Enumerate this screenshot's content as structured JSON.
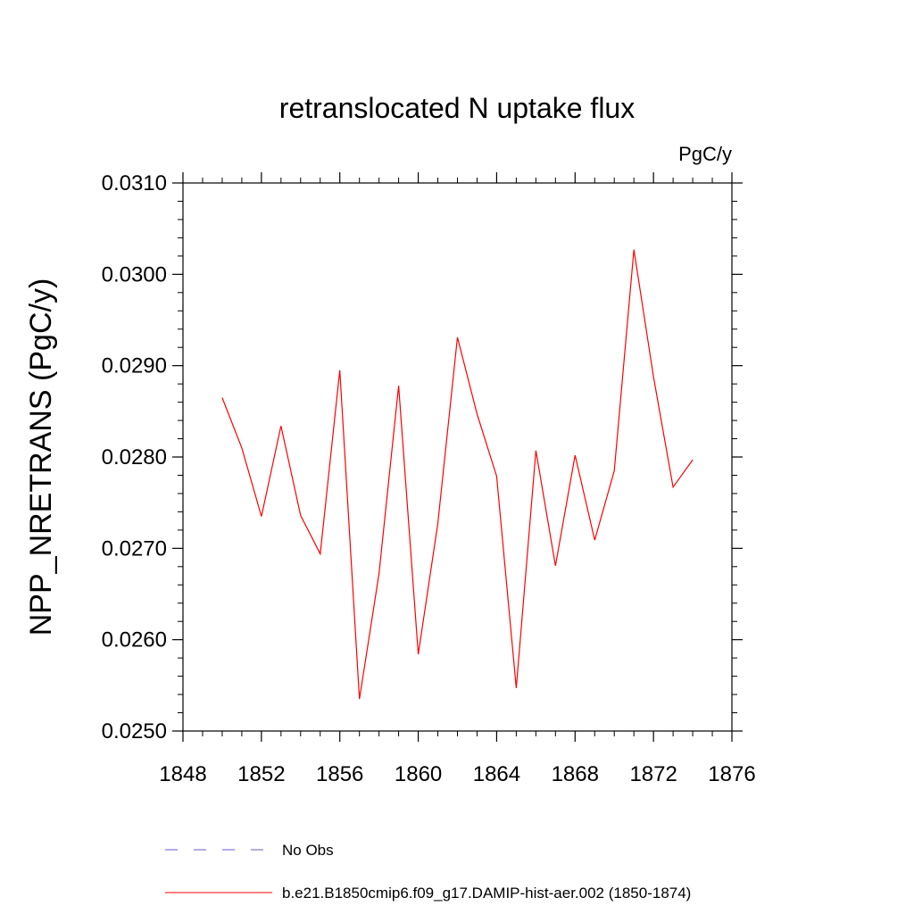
{
  "chart_data": {
    "type": "line",
    "title": "retranslocated N uptake flux",
    "units_label": "PgC/y",
    "xlabel": "",
    "ylabel": "NPP_NRETRANS  (PgC/y)",
    "xlim": [
      1848,
      1876
    ],
    "ylim": [
      0.025,
      0.031
    ],
    "x_ticks": [
      1848,
      1852,
      1856,
      1860,
      1864,
      1868,
      1872,
      1876
    ],
    "x_tick_labels": [
      "1848",
      "1852",
      "1856",
      "1860",
      "1864",
      "1868",
      "1872",
      "1876"
    ],
    "y_ticks": [
      0.025,
      0.026,
      0.027,
      0.028,
      0.029,
      0.03,
      0.031
    ],
    "y_tick_labels": [
      "0.0250",
      "0.0260",
      "0.0270",
      "0.0280",
      "0.0290",
      "0.0300",
      "0.0310"
    ],
    "grid": false,
    "legend_position": "bottom",
    "series": [
      {
        "name": "b.e21.B1850cmip6.f09_g17.DAMIP-hist-aer.002 (1850-1874)",
        "color": "#ff0000",
        "style": "solid",
        "x": [
          1850,
          1851,
          1852,
          1853,
          1854,
          1855,
          1856,
          1857,
          1858,
          1859,
          1860,
          1861,
          1862,
          1863,
          1864,
          1865,
          1866,
          1867,
          1868,
          1869,
          1870,
          1871,
          1872,
          1873,
          1874
        ],
        "values": [
          0.02865,
          0.0281,
          0.02735,
          0.02834,
          0.02736,
          0.02694,
          0.02895,
          0.02535,
          0.02672,
          0.02878,
          0.02584,
          0.02727,
          0.02931,
          0.02847,
          0.02779,
          0.02547,
          0.02807,
          0.02681,
          0.02802,
          0.02709,
          0.02785,
          0.03027,
          0.02888,
          0.02767,
          0.02797
        ]
      }
    ],
    "legend": [
      {
        "label": "No Obs",
        "color": "#6a5acd",
        "style": "dashed"
      },
      {
        "label": "b.e21.B1850cmip6.f09_g17.DAMIP-hist-aer.002 (1850-1874)",
        "color": "#ff0000",
        "style": "solid"
      }
    ]
  }
}
